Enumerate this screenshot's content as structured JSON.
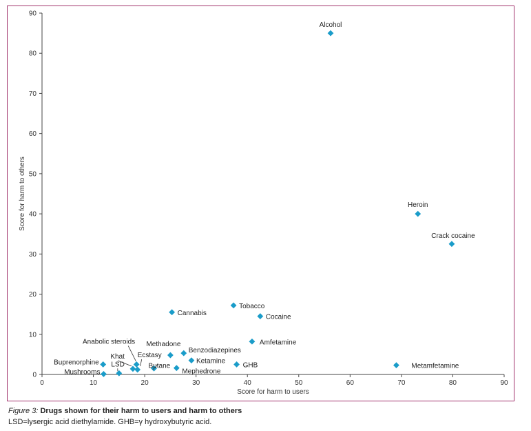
{
  "chart_data": {
    "type": "scatter",
    "xlabel": "Score for harm to users",
    "ylabel": "Score for harm to others",
    "xlim": [
      0,
      90
    ],
    "ylim": [
      0,
      90
    ],
    "xticks": [
      0,
      10,
      20,
      30,
      40,
      50,
      60,
      70,
      80,
      90
    ],
    "yticks": [
      0,
      10,
      20,
      30,
      40,
      50,
      60,
      70,
      80,
      90
    ],
    "grid": false,
    "marker_color": "#1a9cc9",
    "frame_color": "#a0306a",
    "points": [
      {
        "label": "Alcohol",
        "x": 56.2,
        "y": 85.0
      },
      {
        "label": "Heroin",
        "x": 73.2,
        "y": 40.0
      },
      {
        "label": "Crack cocaine",
        "x": 79.8,
        "y": 32.5
      },
      {
        "label": "Metamfetamine",
        "x": 69.0,
        "y": 2.3
      },
      {
        "label": "Tobacco",
        "x": 37.3,
        "y": 17.2
      },
      {
        "label": "Cocaine",
        "x": 42.5,
        "y": 14.5
      },
      {
        "label": "Cannabis",
        "x": 25.3,
        "y": 15.5
      },
      {
        "label": "Amfetamine",
        "x": 40.9,
        "y": 8.2
      },
      {
        "label": "Benzodiazepines",
        "x": 27.6,
        "y": 5.3
      },
      {
        "label": "Ketamine",
        "x": 29.1,
        "y": 3.5
      },
      {
        "label": "GHB",
        "x": 37.9,
        "y": 2.5
      },
      {
        "label": "Methadone",
        "x": 25.0,
        "y": 4.8
      },
      {
        "label": "Mephedrone",
        "x": 26.2,
        "y": 1.6
      },
      {
        "label": "Butane",
        "x": 21.8,
        "y": 1.5
      },
      {
        "label": "Ecstasy",
        "x": 18.6,
        "y": 1.2
      },
      {
        "label": "Anabolic steroids",
        "x": 18.4,
        "y": 2.5
      },
      {
        "label": "Khat",
        "x": 17.7,
        "y": 1.4
      },
      {
        "label": "LSD",
        "x": 15.0,
        "y": 0.3
      },
      {
        "label": "Buprenorphine",
        "x": 11.9,
        "y": 2.5
      },
      {
        "label": "Mushrooms",
        "x": 12.0,
        "y": 0.1
      }
    ]
  },
  "caption": {
    "figure_label": "Figure 3:",
    "title": " Drugs shown for their harm to users and harm to others",
    "note": "LSD=lysergic acid diethylamide. GHB=γ hydroxybutyric acid."
  }
}
